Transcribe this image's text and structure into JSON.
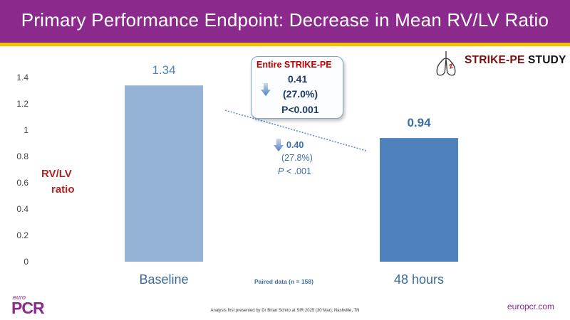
{
  "title": "Primary Performance Endpoint: Decrease in Mean RV/LV Ratio",
  "colors": {
    "header_bg": "#8b2a8c",
    "header_stripe": "#f2c200",
    "bar_baseline": "#95b3d7",
    "bar_48h": "#4f81bd",
    "ylabel": "#b22222",
    "trend_line": "#5b8dc9"
  },
  "chart_data": {
    "type": "bar",
    "categories": [
      "Baseline",
      "48 hours"
    ],
    "values": [
      1.34,
      0.94
    ],
    "value_labels": [
      "1.34",
      "0.94"
    ],
    "ylabel_lines": [
      "RV/LV",
      "ratio"
    ],
    "ylim": [
      0,
      1.4
    ],
    "yticks": [
      0,
      0.2,
      0.4,
      0.6,
      0.8,
      1,
      1.2,
      1.4
    ],
    "ytick_labels": [
      "0",
      "0.2",
      "0.4",
      "0.6",
      "0.8",
      "1",
      "1.2",
      "1.4"
    ],
    "grid": false
  },
  "callout": {
    "title": "Entire STRIKE-PE",
    "value": "0.41",
    "percent": "(27.0%)",
    "p_value": "P<0.001"
  },
  "paired_result": {
    "value": "0.40",
    "percent": "(27.8%)",
    "p_italic": "P",
    "p_rest": " < .001"
  },
  "paired_note": "Paired data (n = 158)",
  "footnote": "Analysis first presented by Dr Brian Schiro at SIR 2025 (30 Mar); Nashville, TN",
  "logos": {
    "strike_main": "STRIKE-PE",
    "strike_study": " STUDY",
    "euro": "euro",
    "pcr": "PCR"
  },
  "website": "europcr.com",
  "icons": [
    "lungs-icon",
    "arrow-down-icon"
  ]
}
